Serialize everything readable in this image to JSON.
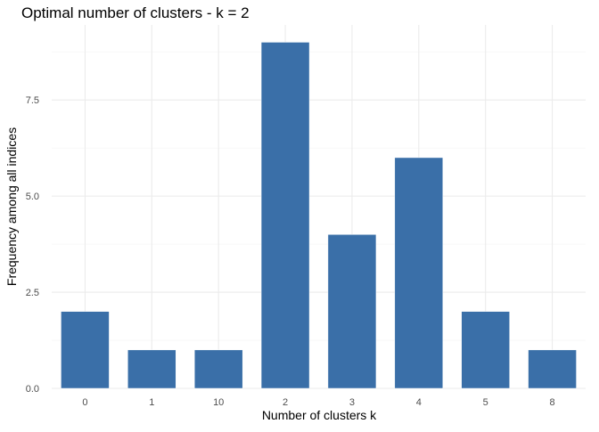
{
  "chart_data": {
    "type": "bar",
    "title": "Optimal number of clusters - k = 2",
    "xlabel": "Number of clusters k",
    "ylabel": "Frequency among all indices",
    "categories": [
      "0",
      "1",
      "10",
      "2",
      "3",
      "4",
      "5",
      "8"
    ],
    "values": [
      2,
      1,
      1,
      9,
      4,
      6,
      2,
      1
    ],
    "ylim": [
      0,
      9.45
    ],
    "y_ticks": [
      0,
      2.5,
      5,
      7.5
    ],
    "y_tick_labels": [
      "0.0",
      "2.5",
      "5.0",
      "7.5"
    ],
    "grid": true,
    "legend": "none",
    "bar_color": "#3a6fa8"
  }
}
